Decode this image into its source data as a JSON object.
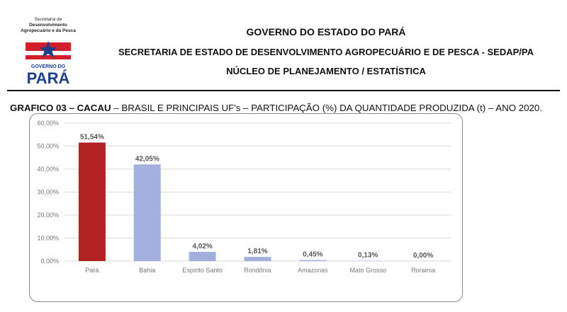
{
  "logo": {
    "line1": "Secretaria de",
    "line2": "Desenvolvimento",
    "line3": "Agropecuário e da Pesca",
    "word_governo": "GOVERNO DO",
    "word_para": "PARÁ"
  },
  "header": {
    "line1": "GOVERNO DO ESTADO DO PARÁ",
    "line2": "SECRETARIA DE ESTADO DE DESENVOLVIMENTO AGROPECUÁRIO E DE PESCA - SEDAP/PA",
    "line3": "NÚCLEO DE PLANEJAMENTO / ESTATÍSTICA"
  },
  "graph_title": {
    "bold": "GRAFICO 03 – CACAU",
    "rest": " – BRASIL E PRINCIPAIS UF's – PARTICIPAÇÃO (%) DA QUANTIDADE PRODUZIDA (t) – ANO 2020."
  },
  "colors": {
    "highlight_bar": "#b22222",
    "bar": "#a3b0dd",
    "grid": "#d9d9d9",
    "flag_red": "#d21f2b",
    "flag_blue": "#1e3f8f"
  },
  "chart_data": {
    "type": "bar",
    "categories": [
      "Pará",
      "Bahia",
      "Espírito Santo",
      "Rondônia",
      "Amazonas",
      "Mato Grosso",
      "Roraima"
    ],
    "values": [
      51.54,
      42.05,
      4.02,
      1.81,
      0.45,
      0.13,
      0.0
    ],
    "data_labels": [
      "51,54%",
      "42,05%",
      "4,02%",
      "1,81%",
      "0,45%",
      "0,13%",
      "0,00%"
    ],
    "y_ticks": [
      "0,00%",
      "10,00%",
      "20,00%",
      "30,00%",
      "40,00%",
      "50,00%",
      "60,00%"
    ],
    "ylim": [
      0,
      60
    ],
    "grid": true,
    "highlight_index": 0
  }
}
